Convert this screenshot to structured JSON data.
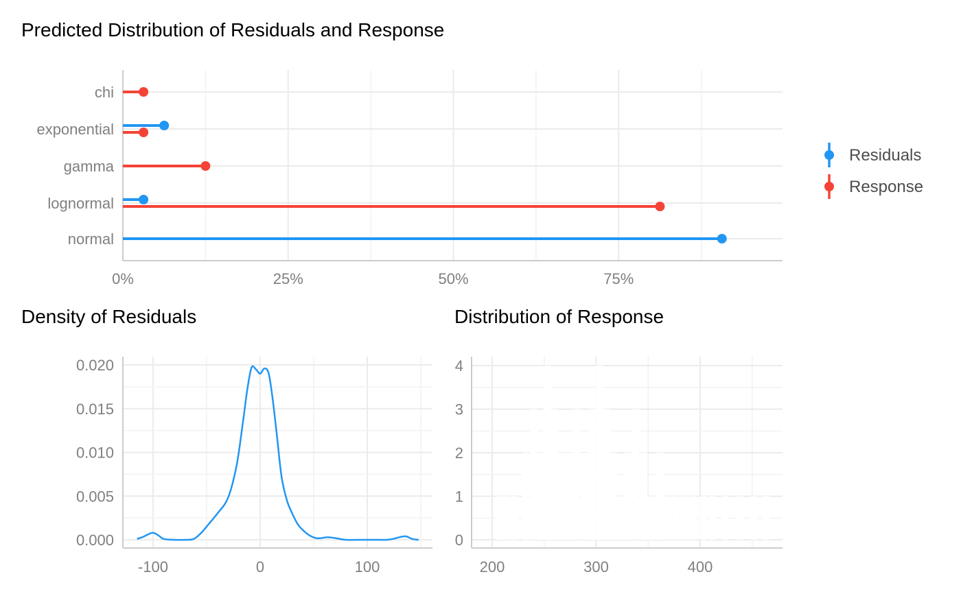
{
  "colors": {
    "residuals": "#2196F3",
    "response": "#F44336",
    "text": "#000000",
    "tick": "#7f7f7f"
  },
  "legend": {
    "position": "right",
    "items": [
      {
        "label": "Residuals",
        "color": "#2196F3"
      },
      {
        "label": "Response",
        "color": "#F44336"
      }
    ]
  },
  "chart_data": [
    {
      "type": "lollipop",
      "title": "Predicted Distribution of Residuals and Response",
      "xlabel": "",
      "ylabel": "",
      "orientation": "horizontal",
      "categories": [
        "chi",
        "exponential",
        "gamma",
        "lognormal",
        "normal"
      ],
      "xlim": [
        0,
        1
      ],
      "x_ticks": [
        0,
        0.25,
        0.5,
        0.75
      ],
      "x_tick_labels": [
        "0%",
        "25%",
        "50%",
        "75%"
      ],
      "grid": true,
      "series": [
        {
          "name": "Residuals",
          "values": [
            null,
            0.0625,
            null,
            0.03125,
            0.90625
          ]
        },
        {
          "name": "Response",
          "values": [
            0.03125,
            0.03125,
            0.125,
            0.8125,
            null
          ]
        }
      ]
    },
    {
      "type": "line",
      "title": "Density of Residuals",
      "xlabel": "",
      "ylabel": "",
      "xlim": [
        -115,
        148
      ],
      "ylim": [
        0,
        0.0205
      ],
      "x_ticks": [
        -100,
        0,
        100
      ],
      "x_tick_labels": [
        "-100",
        "0",
        "100"
      ],
      "y_ticks": [
        0,
        0.005,
        0.01,
        0.015,
        0.02
      ],
      "y_tick_labels": [
        "0.000",
        "0.005",
        "0.010",
        "0.015",
        "0.020"
      ],
      "grid": true,
      "series": [
        {
          "x": [
            -115,
            -110,
            -105,
            -100,
            -95,
            -90,
            -80,
            -70,
            -62,
            -55,
            -48,
            -40,
            -30,
            -22,
            -16,
            -12,
            -8,
            -4,
            0,
            4,
            8,
            12,
            16,
            20,
            25,
            30,
            35,
            40,
            46,
            52,
            57,
            63,
            70,
            80,
            90,
            100,
            110,
            118,
            124,
            130,
            136,
            142,
            148
          ],
          "y": [
            0.0001,
            0.0003,
            0.0006,
            0.0008,
            0.0005,
            0.0001,
            0.0,
            0.0,
            0.0001,
            0.0008,
            0.0018,
            0.003,
            0.0048,
            0.0085,
            0.0135,
            0.0172,
            0.0197,
            0.0195,
            0.019,
            0.0196,
            0.019,
            0.0158,
            0.0115,
            0.0072,
            0.0045,
            0.003,
            0.0018,
            0.0011,
            0.0005,
            0.0002,
            0.0002,
            0.0003,
            0.0002,
            0.0,
            0.0,
            0.0,
            0.0,
            0.0,
            0.0001,
            0.0003,
            0.0004,
            0.0001,
            0.0
          ]
        }
      ]
    },
    {
      "type": "bar",
      "title": "Distribution of Response",
      "xlabel": "",
      "ylabel": "",
      "xlim": [
        184,
        475
      ],
      "ylim": [
        0,
        4.2
      ],
      "x_ticks": [
        200,
        300,
        400
      ],
      "x_tick_labels": [
        "200",
        "300",
        "400"
      ],
      "y_ticks": [
        0,
        1,
        2,
        3,
        4
      ],
      "y_tick_labels": [
        "0",
        "1",
        "2",
        "3",
        "4"
      ],
      "grid": true,
      "bar_color": "#ffffff",
      "bins": [
        {
          "x": 207,
          "value": 1
        },
        {
          "x": 214,
          "value": 1
        },
        {
          "x": 222,
          "value": 1
        },
        {
          "x": 232,
          "value": 2
        },
        {
          "x": 240,
          "value": 3
        },
        {
          "x": 247,
          "value": 2
        },
        {
          "x": 253,
          "value": 4
        },
        {
          "x": 260,
          "value": 3
        },
        {
          "x": 267,
          "value": 2
        },
        {
          "x": 274,
          "value": 2
        },
        {
          "x": 281,
          "value": 3
        },
        {
          "x": 289,
          "value": 2
        },
        {
          "x": 296,
          "value": 3
        },
        {
          "x": 303,
          "value": 4
        },
        {
          "x": 310,
          "value": 3
        },
        {
          "x": 317,
          "value": 2
        },
        {
          "x": 324,
          "value": 1
        },
        {
          "x": 331,
          "value": 2
        },
        {
          "x": 338,
          "value": 3
        },
        {
          "x": 346,
          "value": 2
        },
        {
          "x": 353,
          "value": 1
        },
        {
          "x": 361,
          "value": 2
        },
        {
          "x": 368,
          "value": 1
        },
        {
          "x": 376,
          "value": 1
        },
        {
          "x": 385,
          "value": 1
        },
        {
          "x": 393,
          "value": 1
        },
        {
          "x": 403,
          "value": 1
        },
        {
          "x": 412,
          "value": 1
        },
        {
          "x": 424,
          "value": 1
        },
        {
          "x": 438,
          "value": 1
        },
        {
          "x": 452,
          "value": 1
        },
        {
          "x": 463,
          "value": 1
        }
      ]
    }
  ]
}
